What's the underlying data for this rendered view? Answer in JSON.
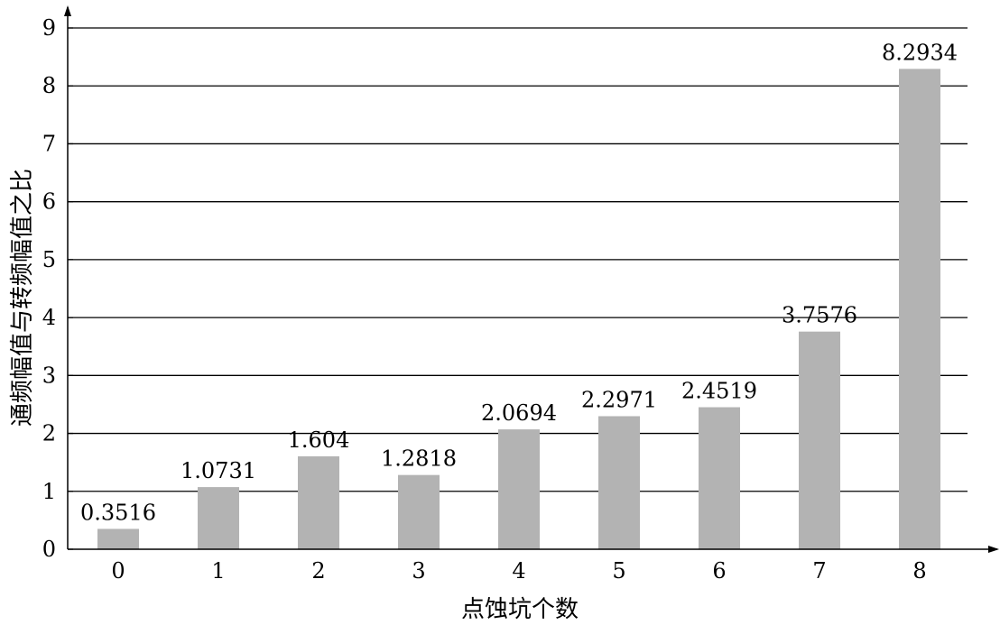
{
  "chart_data": {
    "type": "bar",
    "categories": [
      "0",
      "1",
      "2",
      "3",
      "4",
      "5",
      "6",
      "7",
      "8"
    ],
    "values": [
      0.3516,
      1.0731,
      1.604,
      1.2818,
      2.0694,
      2.2971,
      2.4519,
      3.7576,
      8.2934
    ],
    "data_labels": [
      "0.3516",
      "1.0731",
      "1.604",
      "1.2818",
      "2.0694",
      "2.2971",
      "2.4519",
      "3.7576",
      "8.2934"
    ],
    "title": "",
    "xlabel": "点蚀坑个数",
    "ylabel": "通频幅值与转频幅值之比",
    "ylim": [
      0,
      9
    ],
    "yticks": [
      "0",
      "1",
      "2",
      "3",
      "4",
      "5",
      "6",
      "7",
      "8",
      "9"
    ],
    "grid": true,
    "legend": "none",
    "bar_color": "#b3b3b3",
    "grid_color": "#000000"
  }
}
